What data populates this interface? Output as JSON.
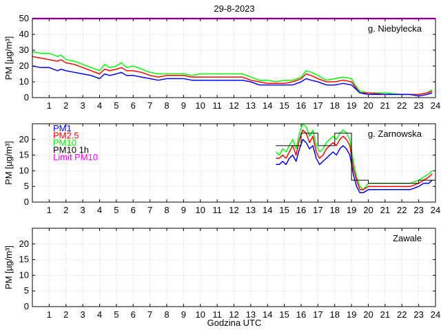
{
  "title": "29-8-2023",
  "xlabel": "Godzina UTC",
  "colors": {
    "pm1": "#0000ff",
    "pm25": "#ff0000",
    "pm10": "#00ff00",
    "pm10_1h": "#000000",
    "limit": "#ff00ff"
  },
  "chart_data": [
    {
      "type": "line",
      "station": "g. Niebylecka",
      "ylabel": "PM [µg/m³]",
      "xlim": [
        0,
        24
      ],
      "ylim": [
        0,
        50
      ],
      "xticks": [
        1,
        2,
        3,
        4,
        5,
        6,
        7,
        8,
        9,
        10,
        11,
        12,
        13,
        14,
        15,
        16,
        17,
        18,
        19,
        20,
        21,
        22,
        23,
        24
      ],
      "yticks": [
        0,
        10,
        20,
        30,
        40,
        50
      ],
      "limit_line": 50,
      "series": [
        {
          "name": "PM10",
          "key": "pm10",
          "x": [
            0,
            0.5,
            1,
            1.5,
            1.7,
            2,
            2.5,
            3,
            3.5,
            4,
            4.3,
            4.6,
            5,
            5.3,
            5.6,
            6,
            6.5,
            7,
            7.5,
            8,
            8.5,
            9,
            9.5,
            10,
            11,
            12,
            12.5,
            13,
            13.5,
            14,
            14.5,
            15,
            15.5,
            16,
            16.3,
            16.6,
            17,
            17.5,
            18,
            18.5,
            19,
            19.2,
            19.5,
            20,
            21,
            22,
            22.5,
            23,
            23.5,
            23.8
          ],
          "y": [
            29,
            28,
            28,
            26,
            27,
            24,
            23,
            21,
            19,
            17,
            21,
            19,
            20,
            22,
            19,
            20,
            18,
            16,
            15,
            15,
            15,
            15,
            14,
            15,
            15,
            15,
            15,
            13,
            11,
            11,
            10,
            11,
            11,
            13,
            17,
            16,
            14,
            11,
            12,
            13,
            12,
            8,
            4,
            3,
            3,
            2,
            2,
            2,
            3,
            5
          ]
        },
        {
          "name": "PM2.5",
          "key": "pm25",
          "x": [
            0,
            0.5,
            1,
            1.5,
            1.7,
            2,
            2.5,
            3,
            3.5,
            4,
            4.3,
            4.6,
            5,
            5.3,
            5.6,
            6,
            6.5,
            7,
            7.5,
            8,
            8.5,
            9,
            9.5,
            10,
            11,
            12,
            12.5,
            13,
            13.5,
            14,
            14.5,
            15,
            15.5,
            16,
            16.3,
            16.6,
            17,
            17.5,
            18,
            18.5,
            19,
            19.2,
            19.5,
            20,
            21,
            22,
            22.5,
            23,
            23.5,
            23.8
          ],
          "y": [
            26,
            25,
            24,
            23,
            24,
            22,
            21,
            19,
            17,
            15,
            18,
            17,
            18,
            19,
            17,
            17,
            16,
            14,
            13,
            14,
            14,
            14,
            13,
            13,
            13,
            13,
            13,
            11,
            10,
            9,
            9,
            9,
            10,
            12,
            15,
            14,
            12,
            10,
            10,
            11,
            10,
            7,
            3,
            3,
            2,
            2,
            2,
            2,
            3,
            4
          ]
        },
        {
          "name": "PM1",
          "key": "pm1",
          "x": [
            0,
            0.5,
            1,
            1.5,
            1.7,
            2,
            2.5,
            3,
            3.5,
            4,
            4.3,
            4.6,
            5,
            5.3,
            5.6,
            6,
            6.5,
            7,
            7.5,
            8,
            8.5,
            9,
            9.5,
            10,
            11,
            12,
            12.5,
            13,
            13.5,
            14,
            14.5,
            15,
            15.5,
            16,
            16.3,
            16.6,
            17,
            17.5,
            18,
            18.5,
            19,
            19.2,
            19.5,
            20,
            21,
            22,
            22.5,
            23,
            23.5,
            23.8
          ],
          "y": [
            20,
            19,
            19,
            17,
            18,
            17,
            16,
            15,
            14,
            12,
            15,
            14,
            15,
            16,
            14,
            14,
            13,
            12,
            11,
            12,
            12,
            12,
            11,
            11,
            11,
            11,
            11,
            10,
            8,
            8,
            8,
            8,
            8,
            10,
            12,
            11,
            10,
            8,
            8,
            9,
            8,
            6,
            3,
            2,
            2,
            2,
            2,
            1,
            2,
            3
          ]
        }
      ]
    },
    {
      "type": "line",
      "station": "g. Zarnowska",
      "ylabel": "PM [µg/m³]",
      "xlim": [
        0,
        24
      ],
      "ylim": [
        0,
        25
      ],
      "xticks": [
        1,
        2,
        3,
        4,
        5,
        6,
        7,
        8,
        9,
        10,
        11,
        12,
        13,
        14,
        15,
        16,
        17,
        18,
        19,
        20,
        21,
        22,
        23,
        24
      ],
      "yticks": [
        0,
        5,
        10,
        15,
        20
      ],
      "legend": {
        "position": "top-left",
        "entries": [
          {
            "label": "PM1",
            "key": "pm1"
          },
          {
            "label": "PM2.5",
            "key": "pm25"
          },
          {
            "label": "PM10",
            "key": "pm10"
          },
          {
            "label": "PM10 1h",
            "key": "pm10_1h"
          },
          {
            "label": "Limit PM10",
            "key": "limit"
          }
        ]
      },
      "series": [
        {
          "name": "PM10",
          "key": "pm10",
          "x": [
            14.5,
            14.7,
            14.9,
            15.1,
            15.3,
            15.5,
            15.7,
            15.9,
            16.1,
            16.3,
            16.5,
            16.7,
            16.9,
            17.1,
            17.3,
            17.5,
            17.7,
            17.9,
            18.1,
            18.3,
            18.5,
            18.7,
            18.9,
            19.1,
            19.3,
            19.5,
            19.7,
            20,
            20.5,
            21,
            21.5,
            22,
            22.5,
            23,
            23.3,
            23.6,
            23.8
          ],
          "y": [
            16,
            15,
            17,
            16,
            18,
            20,
            17,
            22,
            25,
            24,
            21,
            23,
            18,
            16,
            17,
            19,
            20,
            21,
            20,
            22,
            23,
            22,
            20,
            13,
            8,
            5,
            4,
            6,
            6,
            6,
            6,
            6,
            6,
            7,
            8,
            9,
            10
          ]
        },
        {
          "name": "PM2.5",
          "key": "pm25",
          "x": [
            14.5,
            14.7,
            14.9,
            15.1,
            15.3,
            15.5,
            15.7,
            15.9,
            16.1,
            16.3,
            16.5,
            16.7,
            16.9,
            17.1,
            17.3,
            17.5,
            17.7,
            17.9,
            18.1,
            18.3,
            18.5,
            18.7,
            18.9,
            19.1,
            19.3,
            19.5,
            19.7,
            20,
            20.5,
            21,
            21.5,
            22,
            22.5,
            23,
            23.3,
            23.6,
            23.8
          ],
          "y": [
            14,
            14,
            15,
            14,
            16,
            18,
            15,
            20,
            23,
            22,
            19,
            21,
            16,
            14,
            15,
            17,
            18,
            19,
            18,
            20,
            21,
            20,
            18,
            11,
            7,
            4,
            4,
            5,
            5,
            5,
            5,
            5,
            5,
            6,
            7,
            8,
            9
          ]
        },
        {
          "name": "PM1",
          "key": "pm1",
          "x": [
            14.5,
            14.7,
            14.9,
            15.1,
            15.3,
            15.5,
            15.7,
            15.9,
            16.1,
            16.3,
            16.5,
            16.7,
            16.9,
            17.1,
            17.3,
            17.5,
            17.7,
            17.9,
            18.1,
            18.3,
            18.5,
            18.7,
            18.9,
            19.1,
            19.3,
            19.5,
            19.7,
            20,
            20.5,
            21,
            21.5,
            22,
            22.5,
            23,
            23.3,
            23.6,
            23.8
          ],
          "y": [
            12,
            12,
            13,
            12,
            14,
            15,
            13,
            17,
            20,
            19,
            17,
            18,
            14,
            12,
            13,
            14,
            15,
            16,
            15,
            17,
            18,
            17,
            15,
            9,
            5,
            3,
            3,
            4,
            4,
            4,
            4,
            4,
            4,
            5,
            6,
            6,
            7
          ]
        },
        {
          "name": "PM10 1h",
          "key": "pm10_1h",
          "step": true,
          "x": [
            14.5,
            15,
            16,
            17,
            18,
            19,
            20,
            21,
            22,
            23,
            24
          ],
          "y": [
            18,
            18,
            22,
            18,
            22,
            7,
            6,
            6,
            6,
            7,
            7
          ]
        }
      ]
    },
    {
      "type": "line",
      "station": "Zawale",
      "ylabel": "PM [µg/m³]",
      "xlim": [
        0,
        24
      ],
      "ylim": [
        0,
        25
      ],
      "xticks": [
        1,
        2,
        3,
        4,
        5,
        6,
        7,
        8,
        9,
        10,
        11,
        12,
        13,
        14,
        15,
        16,
        17,
        18,
        19,
        20,
        21,
        22,
        23,
        24
      ],
      "yticks": [
        0,
        5,
        10,
        15,
        20
      ],
      "series": []
    }
  ]
}
